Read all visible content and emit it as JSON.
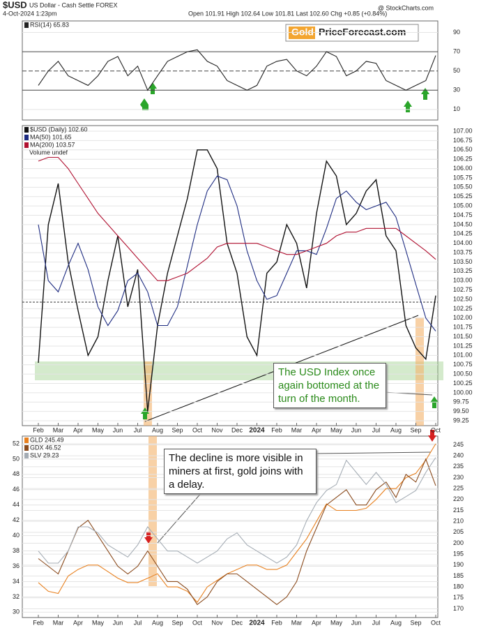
{
  "header": {
    "symbol": "$USD",
    "name": "US Dollar - Cash Settle FOREX",
    "date": "4-Oct-2024 1:23pm",
    "quote": "Open 101.91 High 102.64 Low 101.81 Last 102.60 Chg +0.85 (+0.84%)",
    "credit": "@ StockCharts.com"
  },
  "chart_data": [
    {
      "type": "line",
      "badge": [
        "Gold",
        "PriceForecast.com"
      ],
      "ylim": [
        -1,
        102
      ],
      "yticks": [
        10,
        30,
        50,
        70,
        90
      ],
      "series": [
        {
          "name": "RSI(14) 65.83",
          "color": "#222222",
          "values": [
            35,
            50,
            60,
            45,
            40,
            35,
            45,
            60,
            65,
            45,
            55,
            30,
            45,
            60,
            65,
            70,
            72,
            60,
            55,
            40,
            35,
            30,
            35,
            55,
            60,
            62,
            50,
            45,
            55,
            70,
            65,
            45,
            50,
            60,
            58,
            40,
            35,
            30,
            35,
            40,
            66
          ]
        }
      ]
    },
    {
      "type": "line",
      "volume_label": "Volume undef",
      "annotation": "The USD Index once again bottomed at the turn of the month.",
      "categories": [
        "Feb",
        null,
        "Mar",
        null,
        "Apr",
        null,
        "May",
        null,
        "Jun",
        null,
        "Jul",
        null,
        "Aug",
        null,
        "Sep",
        null,
        "Oct",
        null,
        "Nov",
        null,
        "Dec",
        null,
        "2024",
        null,
        "Feb",
        null,
        "Mar",
        null,
        "Apr",
        null,
        "May",
        null,
        "Jun",
        null,
        "Jul",
        null,
        "Aug",
        null,
        "Sep",
        null,
        "Oct"
      ],
      "ylim": [
        99.12,
        107.15
      ],
      "yticks": [
        99.25,
        {
          "value": 99.5,
          "label": "99.50"
        },
        99.75,
        {
          "value": 100,
          "label": "100.00"
        },
        100.25,
        {
          "value": 100.5,
          "label": "100.50"
        },
        100.75,
        {
          "value": 101,
          "label": "101.00"
        },
        101.25,
        {
          "value": 101.5,
          "label": "101.50"
        },
        101.75,
        {
          "value": 102,
          "label": "102.00"
        },
        102.25,
        {
          "value": 102.5,
          "label": "102.50"
        },
        102.75,
        {
          "value": 103,
          "label": "103.00"
        },
        103.25,
        {
          "value": 103.5,
          "label": "103.50"
        },
        103.75,
        {
          "value": 104,
          "label": "104.00"
        },
        104.25,
        {
          "value": 104.5,
          "label": "104.50"
        },
        104.75,
        {
          "value": 105,
          "label": "105.00"
        },
        105.25,
        {
          "value": 105.5,
          "label": "105.50"
        },
        105.75,
        {
          "value": 106,
          "label": "106.00"
        },
        106.25,
        {
          "value": 106.5,
          "label": "106.50"
        },
        106.75,
        {
          "value": 107,
          "label": "107.00"
        }
      ],
      "series": [
        {
          "name": "$USD (Daily) 102.60",
          "color": "#111111",
          "values": [
            100.8,
            104.5,
            105.6,
            103.5,
            102.2,
            101.0,
            101.5,
            103.0,
            104.2,
            102.3,
            103.3,
            99.5,
            101.8,
            103.2,
            104.2,
            105.2,
            106.5,
            106.5,
            106.0,
            104.0,
            103.2,
            101.5,
            101.0,
            103.2,
            103.5,
            104.5,
            104.0,
            102.8,
            104.8,
            106.2,
            105.8,
            104.5,
            104.8,
            105.4,
            105.7,
            104.2,
            103.8,
            101.8,
            101.2,
            100.9,
            102.6
          ]
        },
        {
          "name": "MA(50) 101.65",
          "color": "#1c2a80",
          "values": [
            104.5,
            103.0,
            102.7,
            103.4,
            104.0,
            103.3,
            102.3,
            101.8,
            102.2,
            103.0,
            103.2,
            102.7,
            101.8,
            101.8,
            102.3,
            103.4,
            104.5,
            105.4,
            105.8,
            105.7,
            105.0,
            103.8,
            103.0,
            102.5,
            102.6,
            103.2,
            103.8,
            103.8,
            103.7,
            104.4,
            105.2,
            105.4,
            105.1,
            104.9,
            105.0,
            105.1,
            104.7,
            103.8,
            102.9,
            102.0,
            101.65
          ]
        },
        {
          "name": "MA(200) 103.57",
          "color": "#b01030",
          "values": [
            106.2,
            106.3,
            106.3,
            106.0,
            105.6,
            105.2,
            104.8,
            104.5,
            104.2,
            103.9,
            103.6,
            103.3,
            103.0,
            103.0,
            103.1,
            103.2,
            103.4,
            103.6,
            103.9,
            104.0,
            104.0,
            104.0,
            104.0,
            103.9,
            103.8,
            103.7,
            103.7,
            103.8,
            103.9,
            104.0,
            104.2,
            104.3,
            104.3,
            104.4,
            104.4,
            104.4,
            104.4,
            104.2,
            104.0,
            103.8,
            103.57
          ]
        }
      ]
    },
    {
      "type": "line",
      "annotation": "The decline is more visible in miners at first, gold joins with a delay.",
      "categories": [
        "Feb",
        null,
        "Mar",
        null,
        "Apr",
        null,
        "May",
        null,
        "Jun",
        null,
        "Jul",
        null,
        "Aug",
        null,
        "Sep",
        null,
        "Oct",
        null,
        "Nov",
        null,
        "Dec",
        null,
        "2024",
        null,
        "Feb",
        null,
        "Mar",
        null,
        "Apr",
        null,
        "May",
        null,
        "Jun",
        null,
        "Jul",
        null,
        "Aug",
        null,
        "Sep",
        null,
        "Oct"
      ],
      "ylim": [
        29.3,
        53
      ],
      "yticks": [
        30,
        32,
        34,
        36,
        38,
        40,
        42,
        44,
        46,
        48,
        50,
        52
      ],
      "y2lim": [
        166,
        249
      ],
      "y2ticks": [
        170,
        175,
        180,
        185,
        190,
        195,
        200,
        205,
        210,
        215,
        220,
        225,
        230,
        235,
        240,
        245
      ],
      "y3lim": [
        16,
        31
      ],
      "series": [
        {
          "name": "GLD 245.49",
          "color": "#e8801e",
          "axis": "y2",
          "values": [
            182,
            178,
            177,
            185,
            188,
            190,
            190,
            187,
            184,
            182,
            182,
            184,
            186,
            180,
            180,
            178,
            173,
            180,
            183,
            186,
            188,
            190,
            190,
            188,
            188,
            190,
            196,
            202,
            210,
            218,
            215,
            215,
            215,
            216,
            220,
            225,
            225,
            230,
            232,
            238,
            245.49
          ]
        },
        {
          "name": "GDX 46.52",
          "color": "#8a4a1c",
          "values": [
            37,
            36,
            35,
            38,
            41,
            42,
            40,
            38,
            36,
            35,
            36,
            38,
            36,
            34,
            34,
            33,
            31,
            32,
            34,
            35,
            35,
            34,
            33,
            32,
            31,
            32,
            34,
            38,
            41,
            44,
            45,
            46,
            44,
            44,
            46,
            47,
            45,
            48,
            47,
            50,
            46.52
          ]
        },
        {
          "name": "SLV 29.23",
          "color": "#a4acb4",
          "axis": "y3",
          "values": [
            21.5,
            20.5,
            20.5,
            21.5,
            23.5,
            23.5,
            23,
            22,
            21.5,
            21,
            22,
            23.5,
            22.5,
            21.5,
            21.5,
            21,
            20.5,
            21,
            21.5,
            22.5,
            23,
            22,
            21.5,
            21,
            20.5,
            21,
            22,
            24,
            25.5,
            26.5,
            27,
            29,
            28,
            27,
            28,
            27,
            25.5,
            26,
            26.5,
            28,
            29.23
          ]
        }
      ]
    }
  ]
}
